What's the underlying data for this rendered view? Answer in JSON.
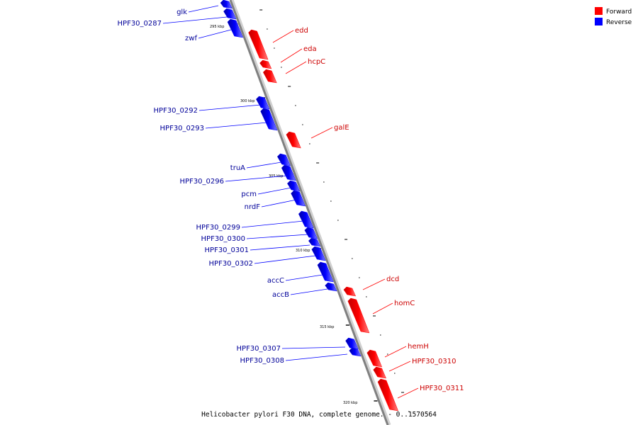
{
  "legend": {
    "forward_label": "Forward",
    "reverse_label": "Reverse",
    "forward_color": "#ff0000",
    "reverse_color": "#0000ff"
  },
  "caption": "Helicobacter pylori F30 DNA, complete genome. - 0..1570564",
  "ticks": [
    "295 kbp",
    "300 kbp",
    "305 kbp",
    "310 kbp",
    "315 kbp",
    "320 kbp"
  ],
  "genes": [
    {
      "name": "glk",
      "strand": "reverse"
    },
    {
      "name": "HPF30_0287",
      "strand": "reverse"
    },
    {
      "name": "zwf",
      "strand": "reverse"
    },
    {
      "name": "edd",
      "strand": "forward"
    },
    {
      "name": "eda",
      "strand": "forward"
    },
    {
      "name": "hcpC",
      "strand": "forward"
    },
    {
      "name": "HPF30_0292",
      "strand": "reverse"
    },
    {
      "name": "HPF30_0293",
      "strand": "reverse"
    },
    {
      "name": "galE",
      "strand": "forward"
    },
    {
      "name": "truA",
      "strand": "reverse"
    },
    {
      "name": "HPF30_0296",
      "strand": "reverse"
    },
    {
      "name": "pcm",
      "strand": "reverse"
    },
    {
      "name": "nrdF",
      "strand": "reverse"
    },
    {
      "name": "HPF30_0299",
      "strand": "reverse"
    },
    {
      "name": "HPF30_0300",
      "strand": "reverse"
    },
    {
      "name": "HPF30_0301",
      "strand": "reverse"
    },
    {
      "name": "HPF30_0302",
      "strand": "reverse"
    },
    {
      "name": "accC",
      "strand": "reverse"
    },
    {
      "name": "accB",
      "strand": "reverse"
    },
    {
      "name": "dcd",
      "strand": "forward"
    },
    {
      "name": "homC",
      "strand": "forward"
    },
    {
      "name": "HPF30_0307",
      "strand": "reverse"
    },
    {
      "name": "HPF30_0308",
      "strand": "reverse"
    },
    {
      "name": "hemH",
      "strand": "forward"
    },
    {
      "name": "HPF30_0310",
      "strand": "forward"
    },
    {
      "name": "HPF30_0311",
      "strand": "forward"
    }
  ]
}
